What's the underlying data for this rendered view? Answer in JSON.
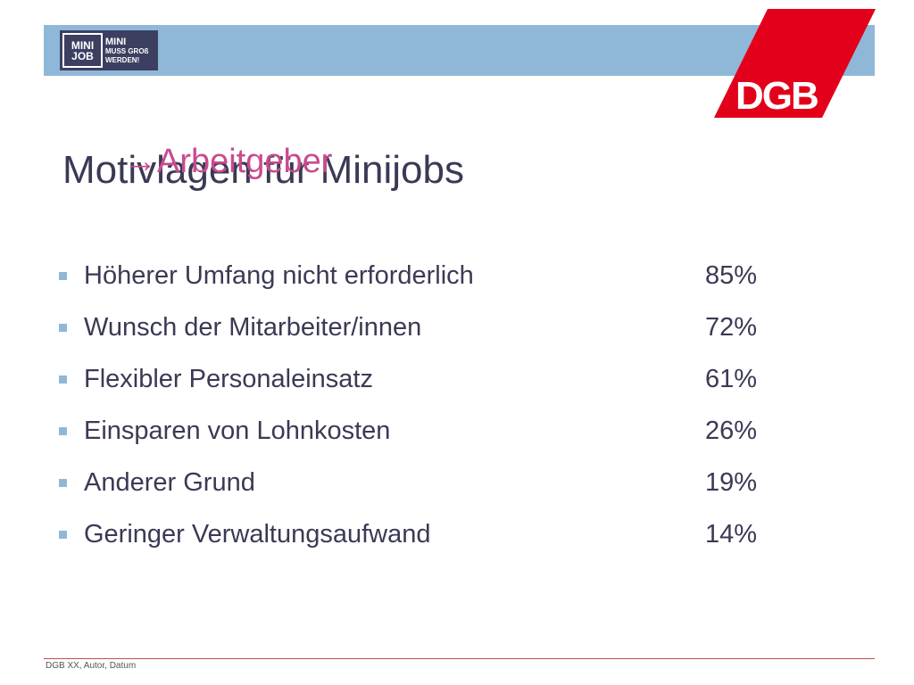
{
  "header": {
    "logo": {
      "box_line1": "MINI",
      "box_line2": "JOB",
      "claim_line1": "MINI",
      "claim_line2": "MUSS GROß",
      "claim_line3": "WERDEN!"
    },
    "dgb_logo_text": "DGB",
    "colors": {
      "band": "#8fb8d8",
      "logo_bg": "#3d3f61",
      "dgb_red": "#e3001b"
    }
  },
  "title": {
    "main": "Motivlagen für Minijobs",
    "overlay": "→Arbeitgeber"
  },
  "items": [
    {
      "label": "Höherer Umfang nicht erforderlich",
      "value": "85%"
    },
    {
      "label": "Wunsch der Mitarbeiter/innen",
      "value": "72%"
    },
    {
      "label": "Flexibler Personaleinsatz",
      "value": "61%"
    },
    {
      "label": "Einsparen von Lohnkosten",
      "value": "26%"
    },
    {
      "label": "Anderer Grund",
      "value": "19%"
    },
    {
      "label": "Geringer Verwaltungsaufwand",
      "value": "14%"
    }
  ],
  "footer": {
    "text": "DGB XX, Autor, Datum"
  }
}
